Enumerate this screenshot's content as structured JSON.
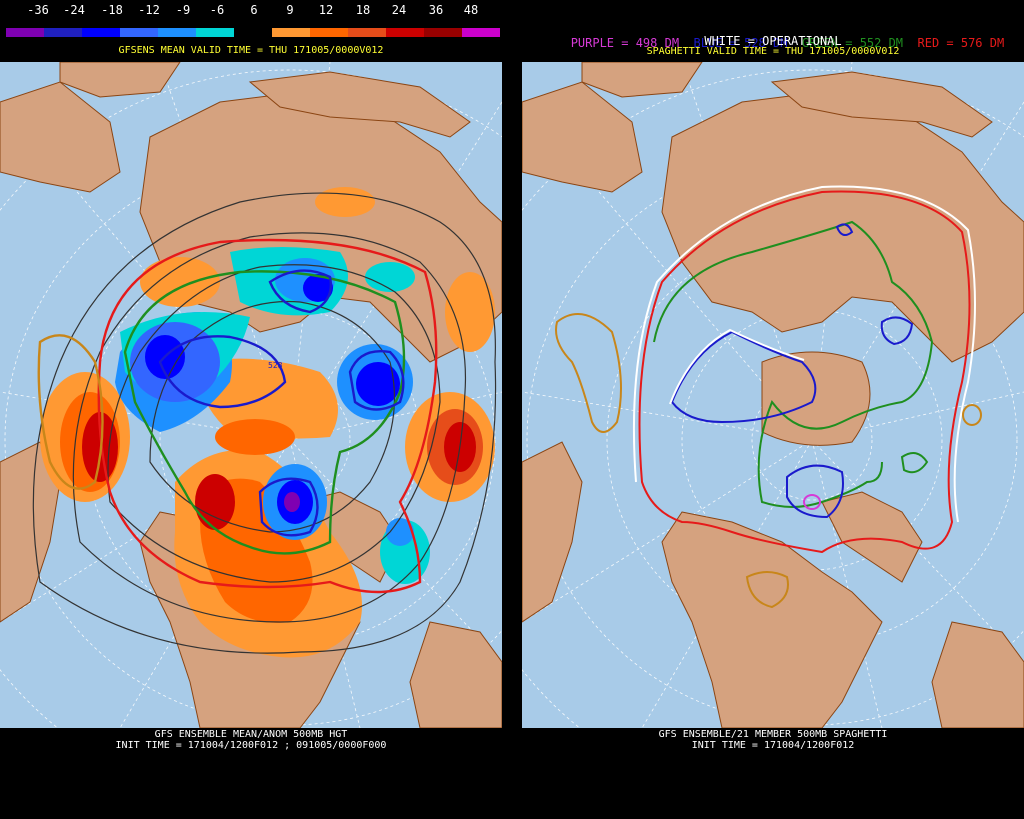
{
  "left": {
    "colorbar": {
      "labels": [
        "-36",
        "-24",
        "-18",
        "-12",
        "-9",
        "-6",
        "6",
        "9",
        "12",
        "18",
        "24",
        "36",
        "48"
      ],
      "colors": [
        "#7f00b2",
        "#2020c0",
        "#0000ff",
        "#3366ff",
        "#1e90ff",
        "#00d6d6",
        "#000000",
        "#ff9933",
        "#ff6600",
        "#e64d1a",
        "#cc0000",
        "#990000",
        "#cc00cc"
      ]
    },
    "title": "GFSENS MEAN VALID TIME = THU 171005/0000V012",
    "bottom_line1": "GFS ENSEMBLE MEAN/ANOM 500MB HGT",
    "bottom_line2": "INIT TIME = 171004/1200F012 ; 091005/0000F000",
    "map_label": "528"
  },
  "right": {
    "legend": [
      {
        "text": "PURPLE = 498 DM",
        "color": "#d63ad6"
      },
      {
        "text": "BLUE = 528 DM",
        "color": "#1a1acc"
      },
      {
        "text": "GREEN = 552 DM",
        "color": "#1f8f1f"
      },
      {
        "text": "RED = 576 DM",
        "color": "#e61a1a"
      }
    ],
    "legend_white": "WHITE = OPERATIONAL",
    "title": "SPAGHETTI VALID TIME = THU 171005/0000V012",
    "bottom_line1": "GFS ENSEMBLE/21 MEMBER 500MB SPAGHETTI",
    "bottom_line2": "INIT TIME = 171004/1200F012"
  },
  "colors": {
    "ocean": "#a8cbe8",
    "land": "#d5a27f",
    "coast": "#8b4513",
    "caption_white": "#ffffff",
    "caption_yellow": "#ffff33"
  }
}
